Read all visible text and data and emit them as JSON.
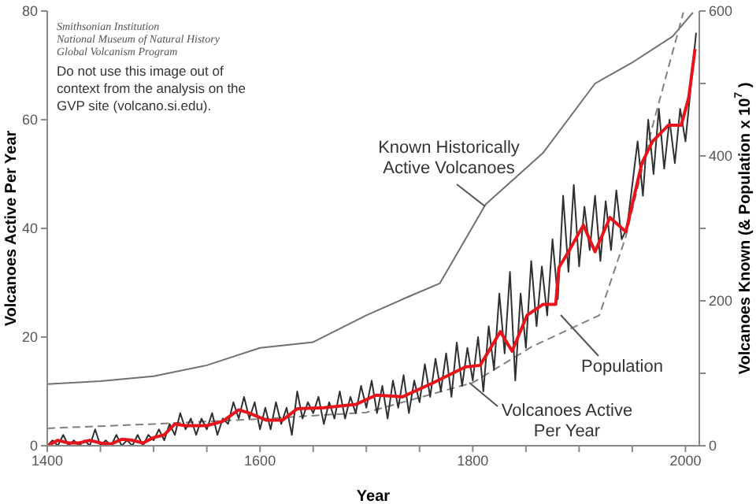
{
  "chart_data": {
    "type": "line",
    "xlabel": "Year",
    "ylabel": "Volcanoes Active Per Year",
    "y2label": "Volcanoes Known (& Population x 10$^{7}$)",
    "annotations": [
      "Smithsonian Institution",
      "National Museum of Natural History",
      "Global Volcanism Program",
      "Do not use this image out of context from the analysis on the GVP site (volcano.si.edu)."
    ],
    "xlim": [
      1400,
      2013
    ],
    "xticks": [
      1400,
      {
        "value": 1450,
        "label": null
      },
      {
        "value": 1500,
        "label": null
      },
      {
        "value": 1550,
        "label": null
      },
      1600,
      {
        "value": 1650,
        "label": null
      },
      {
        "value": 1700,
        "label": null
      },
      {
        "value": 1750,
        "label": null
      },
      1800,
      {
        "value": 1850,
        "label": null
      },
      {
        "value": 1900,
        "label": null
      },
      {
        "value": 1950,
        "label": null
      },
      2000
    ],
    "ylim": [
      0,
      80
    ],
    "yticks": [
      0,
      20,
      40,
      60,
      80
    ],
    "y2lim": [
      0,
      600
    ],
    "y2ticks": [
      0,
      {
        "value": 100,
        "label": null
      },
      200,
      {
        "value": 300,
        "label": null
      },
      400,
      {
        "value": 500,
        "label": null
      },
      600
    ],
    "marker": "none",
    "series": [
      {
        "name": "Known Historically Active Volcanoes",
        "axis": "y2",
        "color": "#707070",
        "line_style": "solid",
        "x": [
          1400,
          1450,
          1500,
          1550,
          1600,
          1650,
          1700,
          1740,
          1769,
          1812,
          1866,
          1915,
          1949,
          1988,
          2007
        ],
        "values": [
          85,
          89,
          96,
          111,
          135,
          143,
          180,
          206,
          224,
          333,
          404,
          500,
          528,
          565,
          598
        ]
      },
      {
        "name": "Population",
        "axis": "y2",
        "color": "#808080",
        "line_style": "dashed",
        "x": [
          1400,
          1500,
          1600,
          1700,
          1800,
          1856,
          1919,
          1944,
          1969,
          1998
        ],
        "values": [
          24,
          30,
          37,
          46,
          87,
          137,
          180,
          289,
          441,
          598
        ]
      },
      {
        "name": "Volcanoes Active Per Year",
        "color": "#303030",
        "line_style": "solid",
        "x": [
          1400,
          1405,
          1410,
          1415,
          1420,
          1425,
          1430,
          1435,
          1440,
          1445,
          1450,
          1455,
          1460,
          1465,
          1470,
          1475,
          1480,
          1485,
          1490,
          1495,
          1500,
          1505,
          1510,
          1515,
          1520,
          1525,
          1530,
          1535,
          1540,
          1545,
          1550,
          1555,
          1560,
          1565,
          1570,
          1575,
          1580,
          1585,
          1590,
          1595,
          1600,
          1605,
          1610,
          1615,
          1620,
          1625,
          1630,
          1635,
          1640,
          1645,
          1650,
          1655,
          1660,
          1665,
          1670,
          1675,
          1680,
          1685,
          1690,
          1695,
          1700,
          1705,
          1710,
          1715,
          1720,
          1725,
          1730,
          1735,
          1740,
          1745,
          1750,
          1755,
          1760,
          1765,
          1770,
          1775,
          1780,
          1785,
          1790,
          1795,
          1800,
          1805,
          1810,
          1815,
          1820,
          1825,
          1830,
          1835,
          1840,
          1845,
          1850,
          1855,
          1860,
          1865,
          1870,
          1875,
          1880,
          1885,
          1890,
          1895,
          1900,
          1905,
          1910,
          1915,
          1920,
          1925,
          1930,
          1935,
          1940,
          1945,
          1950,
          1955,
          1960,
          1965,
          1970,
          1975,
          1980,
          1985,
          1990,
          1995,
          2000,
          2005,
          2010
        ],
        "values": [
          0,
          1,
          0,
          2,
          0,
          1,
          0,
          1,
          0,
          3,
          0,
          1,
          0,
          2,
          0,
          1,
          0,
          2,
          0,
          2,
          1,
          3,
          1,
          4,
          2,
          6,
          3,
          5,
          2,
          5,
          3,
          6,
          2,
          5,
          4,
          8,
          5,
          9,
          5,
          8,
          3,
          7,
          3,
          8,
          4,
          7,
          2,
          10,
          5,
          8,
          6,
          9,
          4,
          8,
          5,
          10,
          5,
          9,
          6,
          11,
          7,
          12,
          6,
          11,
          5,
          12,
          7,
          13,
          6,
          12,
          8,
          15,
          9,
          16,
          10,
          17,
          9,
          19,
          11,
          18,
          12,
          20,
          10,
          22,
          14,
          28,
          17,
          32,
          12,
          28,
          18,
          34,
          22,
          33,
          24,
          38,
          27,
          46,
          32,
          48,
          33,
          44,
          36,
          46,
          34,
          45,
          36,
          47,
          38,
          40,
          48,
          56,
          46,
          60,
          50,
          62,
          51,
          60,
          52,
          62,
          56,
          66,
          76
        ]
      },
      {
        "color": "#e8141c",
        "line_style": "solid",
        "x": [
          1400,
          1410,
          1420,
          1430,
          1440,
          1450,
          1460,
          1470,
          1480,
          1490,
          1500,
          1510,
          1520,
          1530,
          1550,
          1565,
          1580,
          1590,
          1606,
          1621,
          1635,
          1660,
          1690,
          1709,
          1734,
          1763,
          1793,
          1807,
          1826,
          1837,
          1851,
          1866,
          1878,
          1881,
          1890,
          1904,
          1915,
          1929,
          1944,
          1959,
          1969,
          1984,
          1996,
          2003,
          2009
        ],
        "values": [
          0,
          1,
          0.5,
          0.5,
          1,
          0.5,
          0.3,
          1.2,
          1,
          0.5,
          1.5,
          2,
          4,
          3.7,
          3.7,
          4.5,
          6.6,
          6,
          4.7,
          4.7,
          6.8,
          7,
          7.6,
          9.3,
          9,
          11.6,
          14.5,
          14.8,
          21,
          17.4,
          24,
          26,
          26,
          32.8,
          35.7,
          40.6,
          35.7,
          42,
          39.4,
          52,
          56,
          59,
          59,
          64,
          73
        ]
      }
    ]
  }
}
